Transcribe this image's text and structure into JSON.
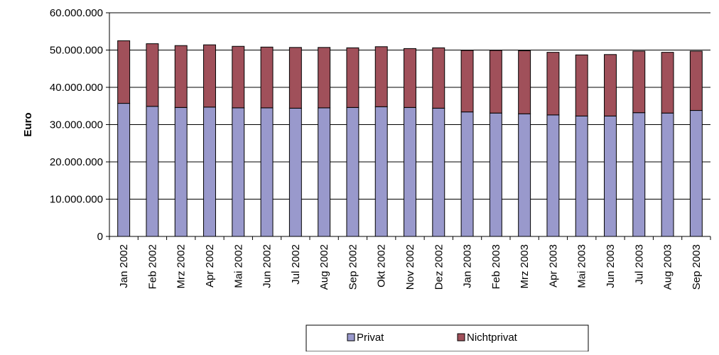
{
  "chart_data": {
    "type": "bar",
    "stacked": true,
    "ylabel": "Euro",
    "xlabel": "",
    "ylim": [
      0,
      60000000
    ],
    "yticks": [
      0,
      10000000,
      20000000,
      30000000,
      40000000,
      50000000,
      60000000
    ],
    "ytick_labels": [
      "0",
      "10.000.000",
      "20.000.000",
      "30.000.000",
      "40.000.000",
      "50.000.000",
      "60.000.000"
    ],
    "grid": "horizontal",
    "legend_position": "bottom",
    "categories": [
      "Jan 2002",
      "Feb 2002",
      "Mrz 2002",
      "Apr 2002",
      "Mai 2002",
      "Jun 2002",
      "Jul 2002",
      "Aug 2002",
      "Sep 2002",
      "Okt 2002",
      "Nov 2002",
      "Dez 2002",
      "Jan 2003",
      "Feb 2003",
      "Mrz 2003",
      "Apr 2003",
      "Mai 2003",
      "Jun 2003",
      "Jul 2003",
      "Aug 2003",
      "Sep 2003"
    ],
    "series": [
      {
        "name": "Privat",
        "color": "#9999cc",
        "values": [
          35700000,
          34900000,
          34600000,
          34700000,
          34500000,
          34500000,
          34400000,
          34500000,
          34600000,
          34800000,
          34600000,
          34400000,
          33400000,
          33100000,
          32900000,
          32600000,
          32300000,
          32300000,
          33200000,
          33100000,
          33800000
        ]
      },
      {
        "name": "Nichtprivat",
        "color": "#a0505a",
        "values": [
          16800000,
          16800000,
          16600000,
          16700000,
          16500000,
          16300000,
          16300000,
          16200000,
          16000000,
          16100000,
          15800000,
          16200000,
          16500000,
          16800000,
          16900000,
          16800000,
          16400000,
          16500000,
          16500000,
          16300000,
          15900000
        ]
      }
    ]
  }
}
